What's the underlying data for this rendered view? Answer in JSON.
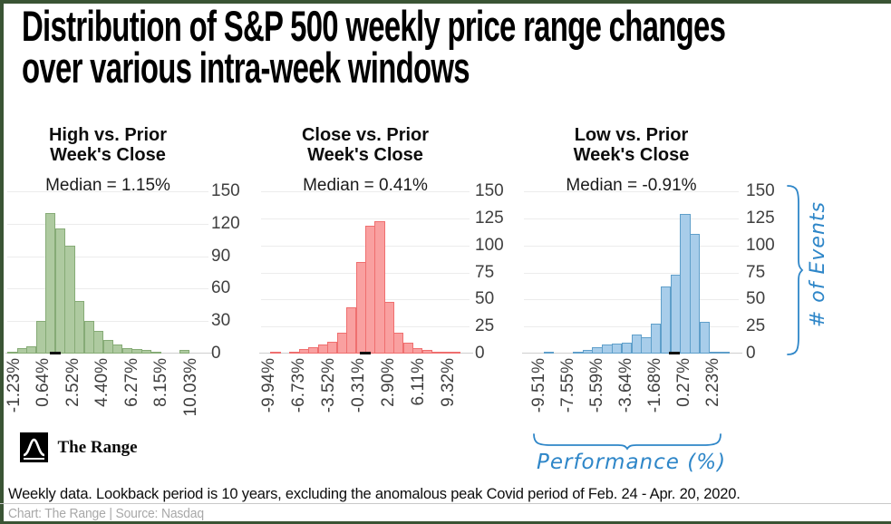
{
  "title": {
    "line1": "Distribution of S&P 500 weekly price range changes",
    "line2": "over various intra-week windows"
  },
  "chart_data": [
    {
      "type": "bar",
      "subtype": "histogram",
      "title": "High vs. Prior Week's Close",
      "title_lines": [
        "High vs. Prior",
        "Week's Close"
      ],
      "median_label": "Median = 1.15%",
      "median_value_pct": 1.15,
      "median_frac": 0.24,
      "fill": "#aecaa0",
      "stroke": "#86ab76",
      "ylim": [
        0,
        150
      ],
      "y_ticks": [
        150,
        120,
        90,
        60,
        30,
        0
      ],
      "x_tick_labels": [
        "-1.23%",
        "0.64%",
        "2.52%",
        "4.40%",
        "6.27%",
        "8.15%",
        "10.03%"
      ],
      "values": [
        2,
        5,
        7,
        30,
        130,
        116,
        100,
        49,
        30,
        21,
        13,
        8,
        5,
        4,
        3,
        2,
        0,
        0,
        3,
        0,
        0
      ]
    },
    {
      "type": "bar",
      "subtype": "histogram",
      "title": "Close vs. Prior Week's Close",
      "title_lines": [
        "Close vs. Prior",
        "Week's Close"
      ],
      "median_label": "Median = 0.41%",
      "median_value_pct": 0.41,
      "median_frac": 0.5,
      "fill": "#f9a0a0",
      "stroke": "#ef6f6f",
      "ylim": [
        0,
        150
      ],
      "y_ticks": [
        150,
        125,
        100,
        75,
        50,
        25,
        0
      ],
      "x_tick_labels": [
        "-9.94%",
        "-6.73%",
        "-3.52%",
        "-0.31%",
        "2.90%",
        "6.11%",
        "9.32%"
      ],
      "values": [
        0,
        2,
        0,
        1,
        4,
        6,
        8,
        11,
        19,
        43,
        85,
        118,
        122,
        48,
        19,
        10,
        5,
        3,
        2,
        1,
        1,
        0
      ]
    },
    {
      "type": "bar",
      "subtype": "histogram",
      "title": "Low vs. Prior Week's Close",
      "title_lines": [
        "Low vs. Prior",
        "Week's Close"
      ],
      "median_label": "Median = -0.91%",
      "median_value_pct": -0.91,
      "median_frac": 0.7,
      "fill": "#a8cdea",
      "stroke": "#5f9fca",
      "ylim": [
        0,
        150
      ],
      "y_ticks": [
        150,
        125,
        100,
        75,
        50,
        25,
        0
      ],
      "x_tick_labels": [
        "-9.51%",
        "-7.55%",
        "-5.59%",
        "-3.64%",
        "-1.68%",
        "0.27%",
        "2.23%"
      ],
      "right_axis_ticks": [
        150,
        125,
        100,
        75,
        50,
        25,
        0
      ]
    }
  ],
  "blue_values_note": "third histogram bin counts",
  "chart_values_low": [
    0,
    0,
    1,
    0,
    0,
    1,
    3,
    6,
    8,
    9,
    10,
    18,
    15,
    28,
    62,
    73,
    129,
    111,
    29,
    2,
    1,
    0
  ],
  "annotations": {
    "x_label": "Performance (%)",
    "y_label": "# of Events",
    "color": "#2e86c8"
  },
  "logo": {
    "text": "The Range"
  },
  "footer": {
    "note": "Weekly data. Lookback period is 10 years, excluding the anomalous peak Covid period of Feb. 24 - Apr. 20, 2020.",
    "credit": "Chart: The Range | Source: Nasdaq"
  }
}
